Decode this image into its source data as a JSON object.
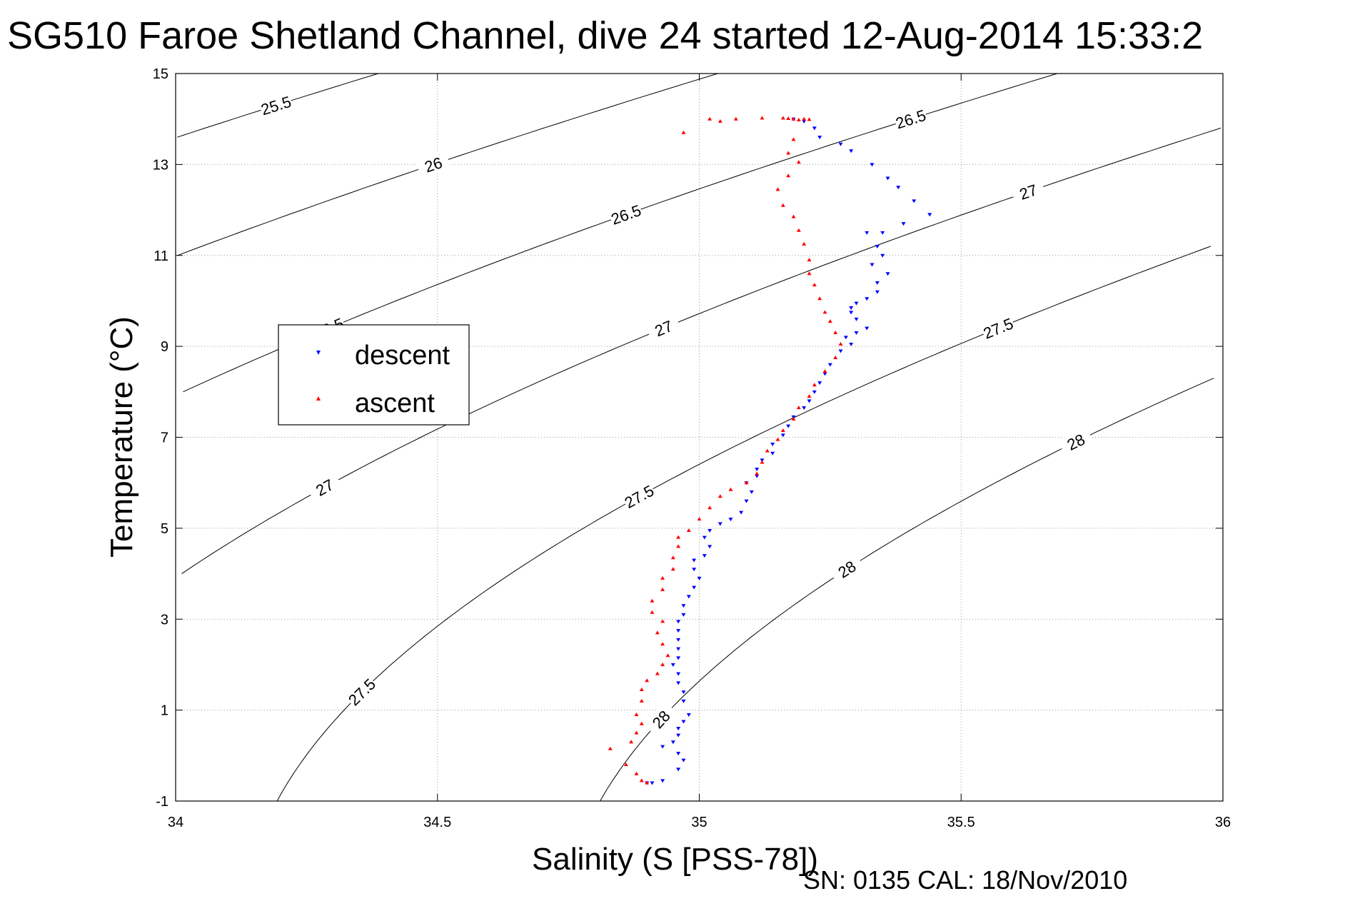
{
  "chart_data": {
    "type": "scatter",
    "title": "SG510 Faroe Shetland Channel, dive 24 started 12-Aug-2014 15:33:2",
    "xlabel": "Salinity (S [PSS-78])",
    "ylabel": "Temperature (°C)",
    "footer": "SN: 0135  CAL: 18/Nov/2010",
    "xlim": [
      34,
      36
    ],
    "ylim": [
      -1,
      15
    ],
    "xticks": [
      34,
      34.5,
      35,
      35.5,
      36
    ],
    "xtick_labels": [
      "34",
      "34.5",
      "35",
      "35.5",
      "36"
    ],
    "yticks": [
      -1,
      1,
      3,
      5,
      7,
      9,
      11,
      13,
      15
    ],
    "ytick_labels": [
      "-1",
      "1",
      "3",
      "5",
      "7",
      "9",
      "11",
      "13",
      "15"
    ],
    "grid": true,
    "legend_position": "left",
    "series": [
      {
        "name": "descent",
        "color": "#0000ff",
        "marker": "triangle-down",
        "points": [
          [
            35.18,
            14.0
          ],
          [
            35.2,
            13.95
          ],
          [
            35.22,
            13.8
          ],
          [
            35.23,
            13.6
          ],
          [
            35.27,
            13.45
          ],
          [
            35.29,
            13.3
          ],
          [
            35.33,
            13.0
          ],
          [
            35.36,
            12.7
          ],
          [
            35.38,
            12.5
          ],
          [
            35.41,
            12.2
          ],
          [
            35.44,
            11.9
          ],
          [
            35.39,
            11.7
          ],
          [
            35.35,
            11.5
          ],
          [
            35.32,
            11.5
          ],
          [
            35.34,
            11.2
          ],
          [
            35.35,
            11.0
          ],
          [
            35.33,
            10.8
          ],
          [
            35.36,
            10.6
          ],
          [
            35.34,
            10.4
          ],
          [
            35.34,
            10.2
          ],
          [
            35.32,
            10.05
          ],
          [
            35.3,
            9.95
          ],
          [
            35.29,
            9.85
          ],
          [
            35.29,
            9.75
          ],
          [
            35.3,
            9.6
          ],
          [
            35.32,
            9.4
          ],
          [
            35.3,
            9.3
          ],
          [
            35.28,
            9.2
          ],
          [
            35.29,
            9.05
          ],
          [
            35.27,
            8.9
          ],
          [
            35.25,
            8.6
          ],
          [
            35.24,
            8.4
          ],
          [
            35.23,
            8.2
          ],
          [
            35.22,
            8.0
          ],
          [
            35.21,
            7.8
          ],
          [
            35.2,
            7.65
          ],
          [
            35.18,
            7.45
          ],
          [
            35.17,
            7.25
          ],
          [
            35.16,
            7.05
          ],
          [
            35.14,
            6.85
          ],
          [
            35.14,
            6.65
          ],
          [
            35.12,
            6.5
          ],
          [
            35.11,
            6.3
          ],
          [
            35.11,
            6.15
          ],
          [
            35.09,
            6.0
          ],
          [
            35.1,
            5.8
          ],
          [
            35.09,
            5.6
          ],
          [
            35.08,
            5.35
          ],
          [
            35.06,
            5.2
          ],
          [
            35.04,
            5.1
          ],
          [
            35.02,
            4.95
          ],
          [
            35.01,
            4.8
          ],
          [
            35.02,
            4.6
          ],
          [
            35.01,
            4.4
          ],
          [
            34.99,
            4.3
          ],
          [
            34.99,
            4.1
          ],
          [
            35.0,
            3.9
          ],
          [
            34.99,
            3.7
          ],
          [
            34.98,
            3.5
          ],
          [
            34.97,
            3.3
          ],
          [
            34.97,
            3.1
          ],
          [
            34.96,
            2.95
          ],
          [
            34.96,
            2.75
          ],
          [
            34.96,
            2.55
          ],
          [
            34.96,
            2.35
          ],
          [
            34.96,
            2.15
          ],
          [
            34.95,
            2.0
          ],
          [
            34.96,
            1.8
          ],
          [
            34.96,
            1.6
          ],
          [
            34.97,
            1.4
          ],
          [
            34.97,
            1.2
          ],
          [
            34.98,
            0.9
          ],
          [
            34.97,
            0.75
          ],
          [
            34.96,
            0.6
          ],
          [
            34.96,
            0.45
          ],
          [
            34.95,
            0.3
          ],
          [
            34.93,
            0.2
          ],
          [
            34.96,
            0.05
          ],
          [
            34.97,
            -0.1
          ],
          [
            34.96,
            -0.3
          ],
          [
            34.93,
            -0.55
          ],
          [
            34.91,
            -0.6
          ],
          [
            34.9,
            -0.6
          ]
        ]
      },
      {
        "name": "ascent",
        "color": "#ff0000",
        "marker": "triangle-up",
        "points": [
          [
            34.9,
            -0.6
          ],
          [
            34.89,
            -0.55
          ],
          [
            34.88,
            -0.4
          ],
          [
            34.86,
            -0.2
          ],
          [
            34.83,
            0.15
          ],
          [
            34.87,
            0.3
          ],
          [
            34.88,
            0.5
          ],
          [
            34.89,
            0.7
          ],
          [
            34.88,
            0.9
          ],
          [
            34.89,
            1.2
          ],
          [
            34.89,
            1.45
          ],
          [
            34.9,
            1.65
          ],
          [
            34.92,
            1.8
          ],
          [
            34.93,
            2.0
          ],
          [
            34.94,
            2.2
          ],
          [
            34.93,
            2.45
          ],
          [
            34.92,
            2.7
          ],
          [
            34.93,
            2.95
          ],
          [
            34.91,
            3.15
          ],
          [
            34.91,
            3.4
          ],
          [
            34.93,
            3.65
          ],
          [
            34.93,
            3.9
          ],
          [
            34.95,
            4.1
          ],
          [
            34.95,
            4.35
          ],
          [
            34.96,
            4.6
          ],
          [
            34.96,
            4.8
          ],
          [
            34.98,
            4.95
          ],
          [
            35.0,
            5.2
          ],
          [
            35.02,
            5.45
          ],
          [
            35.04,
            5.7
          ],
          [
            35.06,
            5.85
          ],
          [
            35.09,
            6.0
          ],
          [
            35.11,
            6.2
          ],
          [
            35.12,
            6.45
          ],
          [
            35.13,
            6.7
          ],
          [
            35.15,
            6.95
          ],
          [
            35.16,
            7.15
          ],
          [
            35.18,
            7.4
          ],
          [
            35.19,
            7.65
          ],
          [
            35.21,
            7.9
          ],
          [
            35.22,
            8.15
          ],
          [
            35.24,
            8.45
          ],
          [
            35.26,
            8.75
          ],
          [
            35.27,
            9.05
          ],
          [
            35.26,
            9.3
          ],
          [
            35.25,
            9.55
          ],
          [
            35.24,
            9.75
          ],
          [
            35.23,
            10.05
          ],
          [
            35.22,
            10.35
          ],
          [
            35.21,
            10.6
          ],
          [
            35.21,
            10.9
          ],
          [
            35.2,
            11.25
          ],
          [
            35.19,
            11.55
          ],
          [
            35.18,
            11.85
          ],
          [
            35.16,
            12.1
          ],
          [
            35.15,
            12.45
          ],
          [
            35.17,
            12.75
          ],
          [
            35.19,
            13.05
          ],
          [
            35.17,
            13.25
          ],
          [
            35.18,
            13.55
          ],
          [
            35.18,
            14.0
          ],
          [
            35.16,
            14.02
          ],
          [
            35.12,
            14.02
          ],
          [
            35.07,
            14.0
          ],
          [
            35.04,
            13.95
          ],
          [
            35.02,
            14.0
          ],
          [
            34.97,
            13.7
          ],
          [
            35.2,
            14.0
          ],
          [
            35.19,
            13.98
          ],
          [
            35.17,
            14.01
          ],
          [
            35.21,
            13.99
          ]
        ]
      }
    ],
    "contours": [
      {
        "level": 25.5,
        "label": "25.5"
      },
      {
        "level": 26,
        "label": "26"
      },
      {
        "level": 26.5,
        "label": "26.5"
      },
      {
        "level": 27,
        "label": "27"
      },
      {
        "level": 27.5,
        "label": "27.5"
      },
      {
        "level": 28,
        "label": "28"
      }
    ]
  }
}
